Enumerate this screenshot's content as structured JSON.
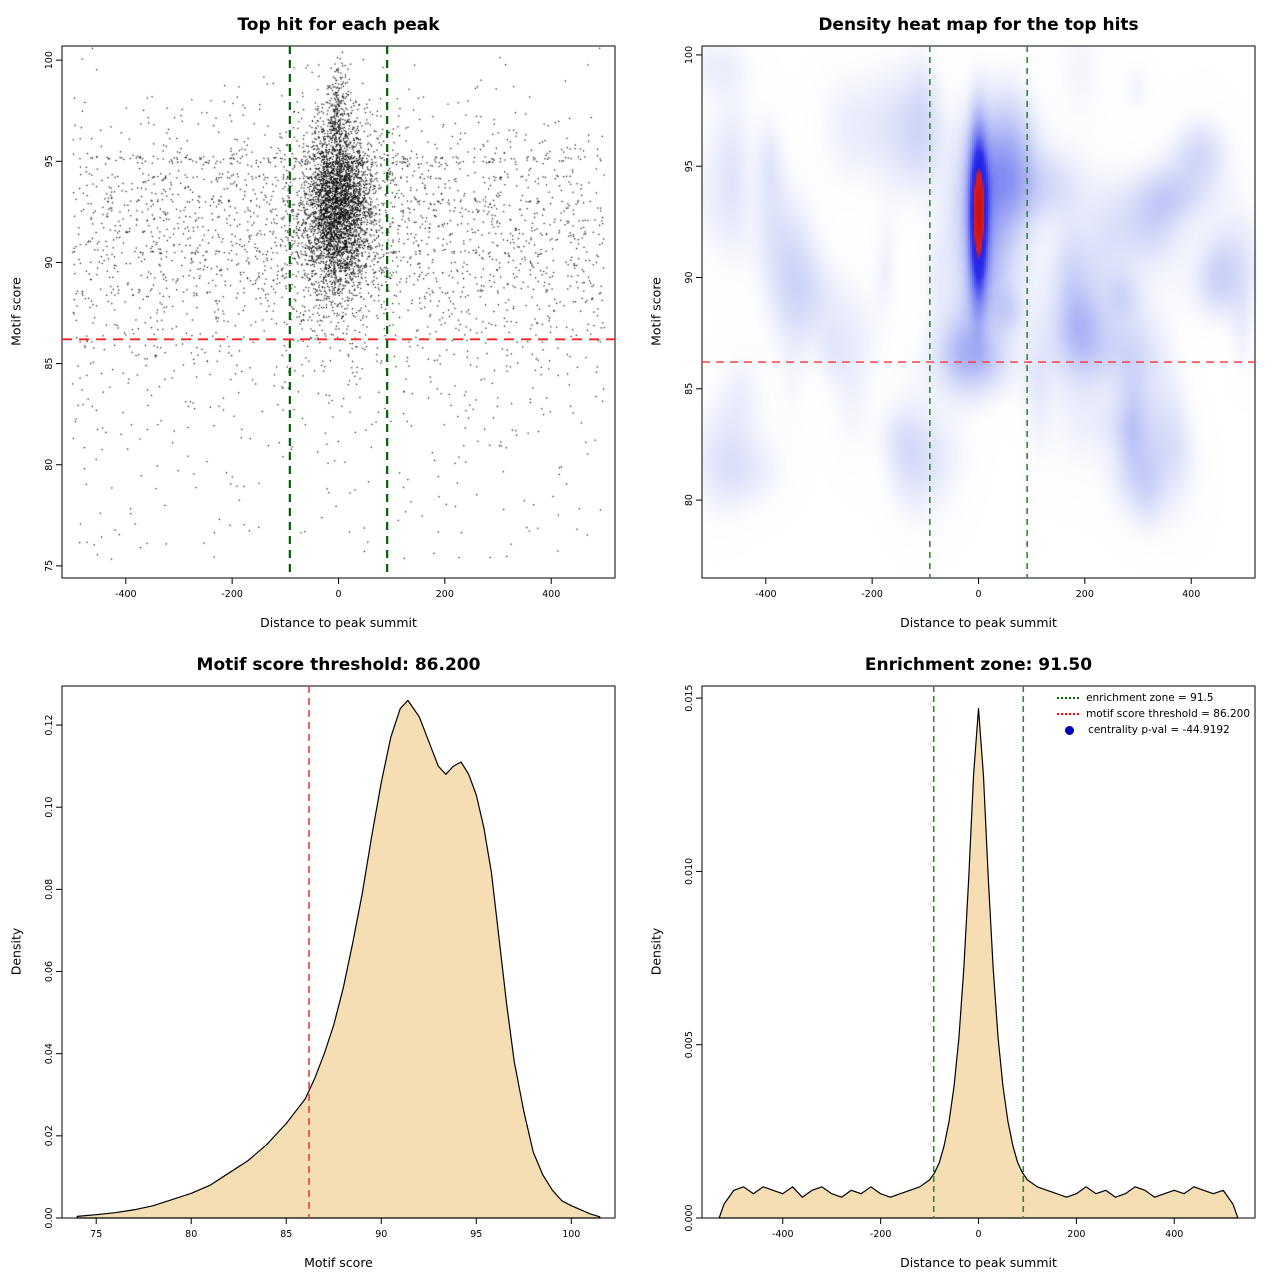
{
  "chart_data": [
    {
      "id": "top-hit-scatter",
      "type": "scatter",
      "title": "Top hit for each peak",
      "xlabel": "Distance to peak summit",
      "ylabel": "Motif score",
      "xlim": [
        -520,
        520
      ],
      "ylim": [
        74.4,
        100.7
      ],
      "xticks": [
        -400,
        -200,
        0,
        200,
        400
      ],
      "xtick_labels": [
        "-400",
        "-200",
        "0",
        "200",
        "400"
      ],
      "yticks": [
        75,
        80,
        85,
        90,
        95,
        100
      ],
      "ytick_labels": [
        "75",
        "80",
        "85",
        "90",
        "95",
        "100"
      ],
      "point_color": "#000000",
      "vlines": [
        {
          "pos": -91.5,
          "color": "#0b5d0b",
          "width": 2.2,
          "dash": "8,6"
        },
        {
          "pos": 91.5,
          "color": "#0b5d0b",
          "width": 2.2,
          "dash": "8,6"
        }
      ],
      "hlines": [
        {
          "pos": 86.2,
          "color": "#ff2222",
          "width": 1.8,
          "dash": "10,7"
        }
      ],
      "clusters": [
        {
          "n": 3000,
          "x": {
            "dist": "normal",
            "mu": 0,
            "sd": 30
          },
          "y": {
            "dist": "normal",
            "mu": 92.8,
            "sd": 2.1
          }
        },
        {
          "n": 700,
          "x": {
            "dist": "normal",
            "mu": 0,
            "sd": 60
          },
          "y": {
            "dist": "normal",
            "mu": 92.2,
            "sd": 3.0
          }
        },
        {
          "n": 200,
          "x": {
            "dist": "normal",
            "mu": 0,
            "sd": 9
          },
          "y": {
            "dist": "normal",
            "mu": 97.4,
            "sd": 1.1
          }
        },
        {
          "n": 1700,
          "x": {
            "dist": "uniform",
            "min": -500,
            "max": 500
          },
          "y": {
            "dist": "normal",
            "mu": 92.0,
            "sd": 2.9
          }
        },
        {
          "n": 600,
          "x": {
            "dist": "uniform",
            "min": -500,
            "max": 500
          },
          "y": {
            "dist": "normal",
            "mu": 87.3,
            "sd": 3.2
          }
        },
        {
          "n": 150,
          "x": {
            "dist": "uniform",
            "min": -500,
            "max": 500
          },
          "y": {
            "dist": "uniform",
            "min": 75.3,
            "max": 84.5
          }
        },
        {
          "n": 80,
          "x": {
            "dist": "uniform",
            "min": -470,
            "max": 470
          },
          "y": {
            "dist": "normal",
            "mu": 95.15,
            "sd": 0.05
          }
        },
        {
          "n": 60,
          "x": {
            "dist": "uniform",
            "min": -320,
            "max": 320
          },
          "y": {
            "dist": "normal",
            "mu": 94.95,
            "sd": 0.04
          }
        },
        {
          "n": 55,
          "x": {
            "dist": "uniform",
            "min": -430,
            "max": 430
          },
          "y": {
            "dist": "normal",
            "mu": 94.2,
            "sd": 0.05
          }
        },
        {
          "n": 50,
          "x": {
            "dist": "uniform",
            "min": -390,
            "max": 390
          },
          "y": {
            "dist": "normal",
            "mu": 93.05,
            "sd": 0.04
          }
        },
        {
          "n": 45,
          "x": {
            "dist": "uniform",
            "min": -360,
            "max": 360
          },
          "y": {
            "dist": "normal",
            "mu": 90.5,
            "sd": 0.04
          }
        }
      ]
    },
    {
      "id": "density-heatmap",
      "type": "heatmap",
      "title": "Density heat map for the top hits",
      "xlabel": "Distance to peak summit",
      "ylabel": "Motif score",
      "xlim": [
        -520,
        520
      ],
      "ylim": [
        76.5,
        100.4
      ],
      "xticks": [
        -400,
        -200,
        0,
        200,
        400
      ],
      "xtick_labels": [
        "-400",
        "-200",
        "0",
        "200",
        "400"
      ],
      "yticks": [
        80,
        85,
        90,
        95,
        100
      ],
      "ytick_labels": [
        "80",
        "85",
        "90",
        "95",
        "100"
      ],
      "components": [
        {
          "mx": 0,
          "my": 92.8,
          "sx": 11,
          "sy": 2.4,
          "w": 1
        },
        {
          "mx": 0,
          "my": 92.2,
          "sx": 26,
          "sy": 3.6,
          "w": 0.22
        }
      ],
      "noise": {
        "count": 75,
        "x_range": [
          -505,
          505
        ],
        "y_range": [
          80.5,
          99.6
        ],
        "sx_range": [
          16,
          55
        ],
        "sy_range": [
          0.7,
          2.4
        ],
        "w_range": [
          0.05,
          0.14
        ]
      },
      "colormap": [
        [
          0,
          255,
          255,
          255
        ],
        [
          0.035,
          252,
          252,
          254
        ],
        [
          0.1,
          228,
          232,
          250
        ],
        [
          0.22,
          184,
          192,
          246
        ],
        [
          0.4,
          120,
          128,
          242
        ],
        [
          0.58,
          48,
          48,
          238
        ],
        [
          0.74,
          34,
          34,
          230
        ],
        [
          0.82,
          222,
          30,
          30
        ],
        [
          1,
          200,
          16,
          16
        ]
      ],
      "vlines": [
        {
          "pos": -91.5,
          "color": "#2e8b2e",
          "width": 1.6,
          "dash": "6,5"
        },
        {
          "pos": 91.5,
          "color": "#2e8b2e",
          "width": 1.6,
          "dash": "6,5"
        }
      ],
      "hlines": [
        {
          "pos": 86.2,
          "color": "#ff3333",
          "width": 1.4,
          "dash": "8,6"
        }
      ]
    },
    {
      "id": "motif-score-density",
      "type": "density",
      "title": "Motif score threshold: 86.200",
      "xlabel": "Motif score",
      "ylabel": "Density",
      "xlim": [
        73.2,
        102.3
      ],
      "ylim": [
        0,
        0.1295
      ],
      "xticks": [
        75,
        80,
        85,
        90,
        95,
        100
      ],
      "xtick_labels": [
        "75",
        "80",
        "85",
        "90",
        "95",
        "100"
      ],
      "yticks": [
        0,
        0.02,
        0.04,
        0.06,
        0.08,
        0.1,
        0.12
      ],
      "ytick_labels": [
        "0.00",
        "0.02",
        "0.04",
        "0.06",
        "0.08",
        "0.10",
        "0.12"
      ],
      "fill": "#f5deb3",
      "line_color": "#000000",
      "vlines": [
        {
          "pos": 86.2,
          "color": "#e04040",
          "width": 1.6,
          "dash": "7,5"
        }
      ],
      "curve": {
        "x": [
          74,
          75,
          76,
          77,
          78,
          79,
          80,
          81,
          82,
          83,
          84,
          84.5,
          85,
          85.5,
          86,
          86.5,
          87,
          87.5,
          88,
          88.5,
          89,
          89.5,
          90,
          90.5,
          91,
          91.4,
          92,
          92.5,
          93,
          93.4,
          93.8,
          94.2,
          94.6,
          95,
          95.4,
          95.8,
          96.2,
          96.6,
          97,
          97.5,
          98,
          98.5,
          99,
          99.5,
          100,
          100.5,
          101,
          101.5
        ],
        "y": [
          0.0004,
          0.0008,
          0.0013,
          0.002,
          0.003,
          0.0045,
          0.006,
          0.008,
          0.011,
          0.014,
          0.018,
          0.0205,
          0.023,
          0.026,
          0.029,
          0.034,
          0.04,
          0.047,
          0.056,
          0.067,
          0.079,
          0.093,
          0.106,
          0.117,
          0.124,
          0.126,
          0.122,
          0.116,
          0.11,
          0.108,
          0.11,
          0.111,
          0.108,
          0.103,
          0.095,
          0.084,
          0.068,
          0.052,
          0.038,
          0.026,
          0.016,
          0.0105,
          0.0068,
          0.0042,
          0.003,
          0.002,
          0.001,
          0.0003
        ]
      }
    },
    {
      "id": "enrichment-zone-density",
      "type": "density",
      "title": "Enrichment zone: 91.50",
      "xlabel": "Distance to peak summit",
      "ylabel": "Density",
      "xlim": [
        -565,
        565
      ],
      "ylim": [
        0,
        0.01535
      ],
      "xticks": [
        -400,
        -200,
        0,
        200,
        400
      ],
      "xtick_labels": [
        "-400",
        "-200",
        "0",
        "200",
        "400"
      ],
      "yticks": [
        0,
        0.005,
        0.01,
        0.015
      ],
      "ytick_labels": [
        "0.000",
        "0.005",
        "0.010",
        "0.015"
      ],
      "fill": "#f5deb3",
      "line_color": "#000000",
      "vlines": [
        {
          "pos": -91.5,
          "color": "#2e8b2e",
          "width": 1.6,
          "dash": "6,4"
        },
        {
          "pos": 91.5,
          "color": "#2e8b2e",
          "width": 1.6,
          "dash": "6,4"
        }
      ],
      "curve": {
        "x": [
          -530,
          -520,
          -500,
          -480,
          -460,
          -440,
          -420,
          -400,
          -380,
          -360,
          -340,
          -320,
          -300,
          -280,
          -260,
          -240,
          -220,
          -200,
          -180,
          -160,
          -140,
          -120,
          -100,
          -90,
          -80,
          -70,
          -60,
          -50,
          -40,
          -30,
          -20,
          -10,
          0,
          10,
          20,
          30,
          40,
          50,
          60,
          70,
          80,
          90,
          100,
          120,
          140,
          160,
          180,
          200,
          220,
          240,
          260,
          280,
          300,
          320,
          340,
          360,
          380,
          400,
          420,
          440,
          460,
          480,
          500,
          520,
          530
        ],
        "y": [
          0,
          0.0004,
          0.0008,
          0.0009,
          0.0007,
          0.0009,
          0.0008,
          0.0007,
          0.0009,
          0.0006,
          0.0008,
          0.0009,
          0.0007,
          0.0006,
          0.0008,
          0.0007,
          0.0009,
          0.0007,
          0.0006,
          0.0007,
          0.0008,
          0.0009,
          0.0011,
          0.0013,
          0.0016,
          0.0021,
          0.0028,
          0.0038,
          0.0052,
          0.0072,
          0.0098,
          0.0128,
          0.0147,
          0.0128,
          0.0098,
          0.0072,
          0.0052,
          0.0038,
          0.0028,
          0.0021,
          0.0016,
          0.0013,
          0.0011,
          0.0009,
          0.0008,
          0.0007,
          0.0006,
          0.0007,
          0.0009,
          0.0007,
          0.0008,
          0.0006,
          0.0007,
          0.0009,
          0.0008,
          0.0006,
          0.0007,
          0.0008,
          0.0007,
          0.0009,
          0.0008,
          0.0007,
          0.0008,
          0.0004,
          0
        ]
      },
      "legend": {
        "items": [
          {
            "symbol": "dotted-line",
            "color": "#006400",
            "label": "enrichment zone = 91.5"
          },
          {
            "symbol": "dotted-line",
            "color": "#ff0000",
            "label": "motif score threshold = 86.200"
          },
          {
            "symbol": "point",
            "color": "#0000cd",
            "label": "centrality p-val = -44.9192"
          }
        ]
      }
    }
  ]
}
